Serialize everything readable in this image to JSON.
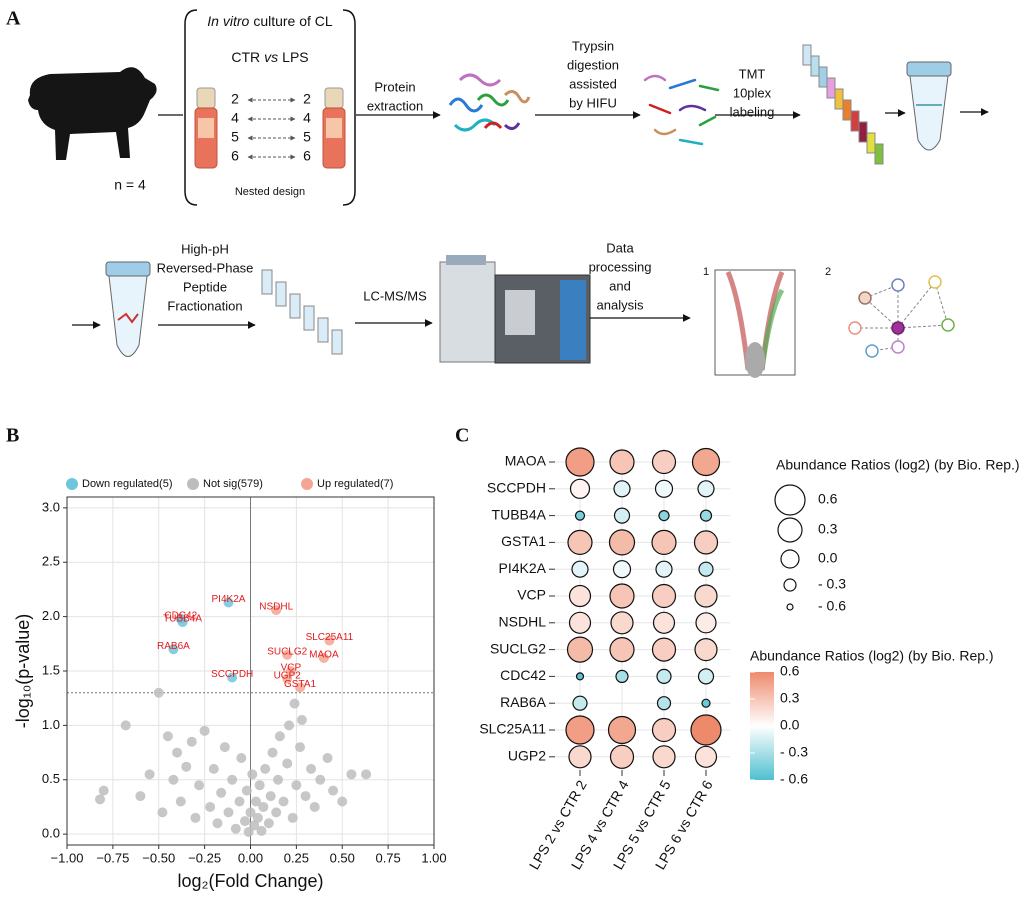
{
  "panel_a": {
    "label": "A",
    "culture_title": [
      "In vitro",
      "culture of CL"
    ],
    "comparison": [
      "CTR",
      "vs",
      "LPS"
    ],
    "pairs_left": [
      "2",
      "4",
      "5",
      "6"
    ],
    "pairs_right": [
      "2",
      "4",
      "5",
      "6"
    ],
    "design": "Nested design",
    "n": "n = 4",
    "steps": [
      [
        "Protein",
        "extraction"
      ],
      [
        "Trypsin",
        "digestion",
        "assisted",
        "by HIFU"
      ],
      [
        "TMT",
        "10plex",
        "labeling"
      ],
      [
        "High-pH",
        "Reversed-Phase",
        "Peptide",
        "Fractionation"
      ],
      [
        "LC-MS/MS"
      ],
      [
        "Data",
        "processing",
        "and",
        "analysis"
      ]
    ],
    "result_labels": [
      "1",
      "2"
    ]
  },
  "chart_data": [
    {
      "type": "scatter",
      "panel": "B",
      "xlabel": "log₂(Fold Change)",
      "ylabel": "-log₁₀(p-value)",
      "xlim": [
        -1,
        1
      ],
      "ylim": [
        -0.1,
        3.1
      ],
      "xticks": [
        {
          "value": -1,
          "label": "−1.00"
        },
        {
          "value": -0.75,
          "label": "−0.75"
        },
        {
          "value": -0.5,
          "label": "−0.50"
        },
        {
          "value": -0.25,
          "label": "−0.25"
        },
        {
          "value": 0,
          "label": "0.00"
        },
        {
          "value": 0.25,
          "label": "0.25"
        },
        {
          "value": 0.5,
          "label": "0.50"
        },
        {
          "value": 0.75,
          "label": "0.75"
        },
        {
          "value": 1,
          "label": "1.00"
        }
      ],
      "yticks": [
        {
          "value": 0,
          "label": "0.0"
        },
        0.5,
        {
          "value": 1,
          "label": "1.0"
        },
        1.5,
        {
          "value": 2,
          "label": "2.0"
        },
        2.5,
        {
          "value": 3,
          "label": "3.0"
        }
      ],
      "grid": true,
      "legend": "top",
      "hlines": [
        1.3
      ],
      "vlines": [
        0
      ],
      "series": [
        {
          "name": "Down regulated(5)",
          "color": "#6ec6dc",
          "x": [
            -0.12,
            -0.38,
            -0.37,
            -0.42,
            -0.1
          ],
          "values": [
            2.13,
            1.98,
            1.95,
            1.7,
            1.44
          ],
          "labels": [
            "PI4K2A",
            "CDC42",
            "TUBB4A",
            "RAB6A",
            "SCCPDH"
          ]
        },
        {
          "name": "Not sig(579)",
          "color": "#bdbdbd",
          "x": [
            -0.82,
            -0.8,
            -0.68,
            -0.6,
            -0.55,
            -0.5,
            -0.48,
            -0.45,
            -0.42,
            -0.4,
            -0.38,
            -0.35,
            -0.32,
            -0.3,
            -0.28,
            -0.25,
            -0.22,
            -0.2,
            -0.18,
            -0.16,
            -0.14,
            -0.12,
            -0.1,
            -0.08,
            -0.06,
            -0.05,
            -0.03,
            -0.02,
            -0.01,
            0,
            0.01,
            0.02,
            0.03,
            0.04,
            0.05,
            0.06,
            0.07,
            0.08,
            0.1,
            0.11,
            0.12,
            0.14,
            0.15,
            0.16,
            0.18,
            0.2,
            0.21,
            0.23,
            0.24,
            0.25,
            0.27,
            0.28,
            0.3,
            0.33,
            0.35,
            0.38,
            0.42,
            0.45,
            0.5,
            0.55,
            0.63
          ],
          "values": [
            0.32,
            0.4,
            1.0,
            0.35,
            0.55,
            1.3,
            0.2,
            0.9,
            0.5,
            0.75,
            0.3,
            0.62,
            0.85,
            0.15,
            0.45,
            0.95,
            0.25,
            0.6,
            0.1,
            0.38,
            0.8,
            0.2,
            0.5,
            0.05,
            0.3,
            0.7,
            0.12,
            0.4,
            0.02,
            0.2,
            0.55,
            0.08,
            0.3,
            0.15,
            0.45,
            0.03,
            0.25,
            0.6,
            0.1,
            0.35,
            0.75,
            0.2,
            0.5,
            0.9,
            0.3,
            0.65,
            1.0,
            0.15,
            1.2,
            0.45,
            0.8,
            1.05,
            0.35,
            0.6,
            0.25,
            0.5,
            0.7,
            0.4,
            0.3,
            0.55,
            0.55
          ]
        },
        {
          "name": "Up regulated(7)",
          "color": "#f4a593",
          "x": [
            0.14,
            0.43,
            0.2,
            0.4,
            0.22,
            0.2,
            0.27
          ],
          "values": [
            2.06,
            1.78,
            1.65,
            1.62,
            1.5,
            1.43,
            1.35
          ],
          "labels": [
            "NSDHL",
            "SLC25A11",
            "SUCLG2",
            "MAOA",
            "VCP",
            "UGP2",
            "GSTA1"
          ]
        }
      ]
    },
    {
      "type": "dot_matrix",
      "panel": "C",
      "rows": [
        "MAOA",
        "SCCPDH",
        "TUBB4A",
        "GSTA1",
        "PI4K2A",
        "VCP",
        "NSDHL",
        "SUCLG2",
        "CDC42",
        "RAB6A",
        "SLC25A11",
        "UGP2"
      ],
      "columns": [
        "LPS 2 vs CTR 2",
        "LPS 4 vs CTR 4",
        "LPS 5 vs CTR 5",
        "LPS 6 vs CTR 6"
      ],
      "values": [
        [
          0.5,
          0.3,
          0.25,
          0.45
        ],
        [
          0.05,
          -0.1,
          -0.05,
          -0.1
        ],
        [
          -0.45,
          -0.15,
          -0.4,
          -0.35
        ],
        [
          0.3,
          0.35,
          0.3,
          0.25
        ],
        [
          -0.1,
          -0.05,
          -0.1,
          -0.2
        ],
        [
          0.15,
          0.3,
          0.25,
          0.2
        ],
        [
          0.15,
          0.2,
          0.15,
          0.1
        ],
        [
          0.35,
          0.3,
          0.25,
          0.2
        ],
        [
          -0.55,
          -0.3,
          -0.2,
          -0.15
        ],
        [
          -0.2,
          null,
          -0.25,
          -0.5
        ],
        [
          0.5,
          0.45,
          0.25,
          0.6
        ],
        [
          0.2,
          0.25,
          0.2,
          0.15
        ]
      ],
      "size_legend": {
        "title": "Abundance Ratios (log2) (by Bio. Rep.)",
        "ticks": [
          0.6,
          0.3,
          {
            "value": 0,
            "label": "0.0"
          },
          {
            "value": -0.3,
            "label": "- 0.3"
          },
          {
            "value": -0.6,
            "label": "- 0.6"
          }
        ]
      },
      "colorbar": {
        "title": "Abundance Ratios (log2) (by Bio. Rep.)",
        "lim": [
          -0.6,
          0.6
        ],
        "colors": [
          "#4fbfd0",
          "#ffffff",
          "#ee8a6c"
        ],
        "ticks": [
          0.6,
          0.3,
          {
            "value": 0,
            "label": "0.0"
          },
          {
            "value": -0.3,
            "label": "- 0.3"
          },
          {
            "value": -0.6,
            "label": "- 0.6"
          }
        ]
      }
    }
  ]
}
